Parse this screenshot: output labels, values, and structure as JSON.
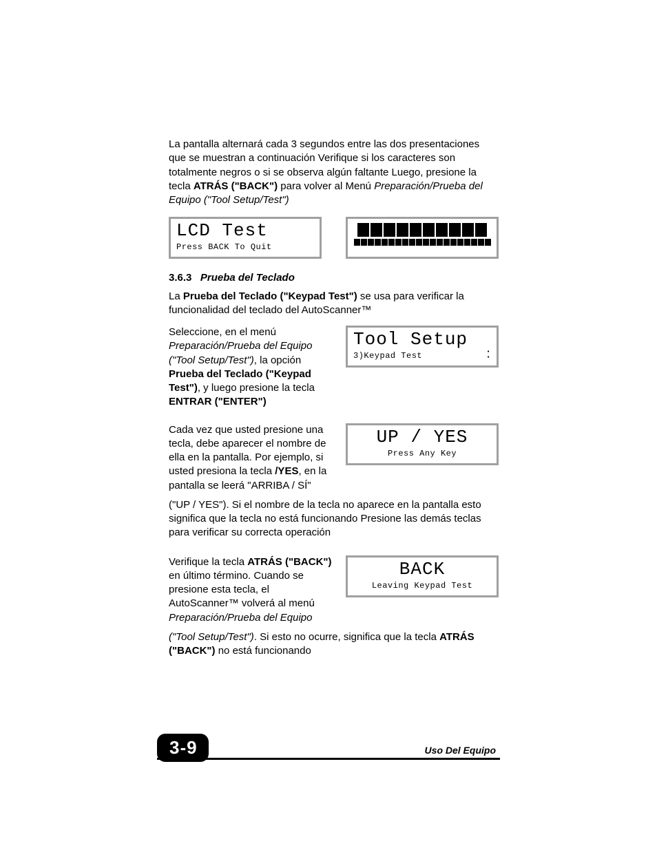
{
  "intro": {
    "t1": "La pantalla alternará cada 3 segundos entre las dos presentaciones que se muestran a continuación Verifique si los caracteres son totalmente negros o si se observa algún faltante Luego, presione la tecla ",
    "b1": "ATRÁS (\"BACK\")",
    "t2": " para volver al Menú ",
    "i1": "Preparación/Prueba del Equipo (\"Tool Setup/Test\")"
  },
  "lcd1": {
    "line1": "LCD Test",
    "line2": "Press BACK To Quit"
  },
  "section": {
    "num": "3.6.3",
    "title": "Prueba del Teclado"
  },
  "p2": {
    "t1": "La ",
    "b1": "Prueba del Teclado (\"Keypad Test\")",
    "t2": " se usa para verificar la funcionalidad del teclado del AutoScanner™"
  },
  "p3": {
    "t1": "Seleccione, en el menú ",
    "i1": "Preparación/Prueba del Equipo (\"Tool Setup/Test\")",
    "t2": ", la opción ",
    "b1": "Prueba del Teclado (\"Keypad Test\")",
    "t3": ", y luego presione la tecla ",
    "b2": "ENTRAR (\"ENTER\")"
  },
  "lcd_tool": {
    "line1": "Tool Setup",
    "line2": "3)Keypad Test"
  },
  "p4": {
    "t1": "Cada vez que usted presione una tecla, debe aparecer el nombre de ella en la pantalla. Por ejemplo, si usted presiona la tecla   ",
    "b1": "/YES",
    "t2": ", en la pantalla se leerá \"ARRIBA / SÍ\" (\"UP / YES\"). Si el nombre de la tecla no aparece en la pantalla esto significa que la tecla no está funcionando Presione las demás teclas para verificar su correcta operación"
  },
  "lcd_up": {
    "line1": "UP / YES",
    "line2": "Press Any Key"
  },
  "p5": {
    "t1": "Verifique la tecla ",
    "b1": "ATRÁS (\"BACK\")",
    "t2": " en último término. Cuando se presione esta tecla, el AutoScanner™ volverá al menú ",
    "i1": "Preparación/Prueba del Equipo (\"Tool Setup/Test\")",
    "t3": ". Si esto no ocurre, significa que la tecla ",
    "b2": "ATRÁS (\"BACK\")",
    "t4": " no está funcionando"
  },
  "lcd_back": {
    "line1": "BACK",
    "line2": "Leaving Keypad Test"
  },
  "footer": {
    "page": "3-9",
    "label": "Uso Del Equipo"
  },
  "blocks": {
    "big_count": 10,
    "small_count": 20
  }
}
